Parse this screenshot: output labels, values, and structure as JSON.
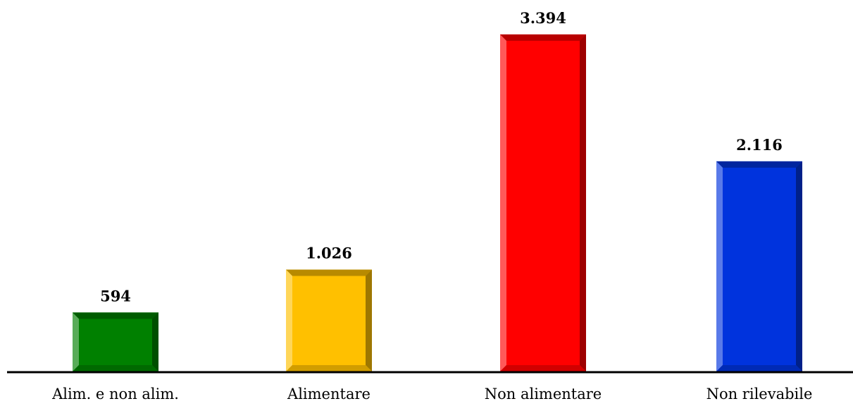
{
  "chart_data": {
    "type": "bar",
    "categories": [
      "Alim. e non alim.",
      "Alimentare",
      "Non alimentare",
      "Non rilevabile"
    ],
    "values": [
      594,
      1026,
      3394,
      2116
    ],
    "value_labels": [
      "594",
      "1.026",
      "3.394",
      "2.116"
    ],
    "colors": [
      "#008000",
      "#FFC000",
      "#FF0000",
      "#0033DD"
    ],
    "title": "",
    "xlabel": "",
    "ylabel": "",
    "ylim": [
      0,
      3400
    ],
    "grid": false,
    "legend": "none"
  }
}
